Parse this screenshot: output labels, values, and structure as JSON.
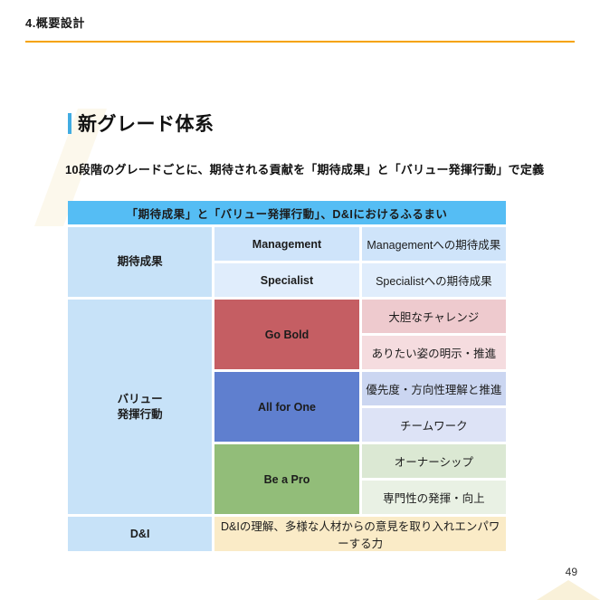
{
  "slide": {
    "section_label": "4.概要設計",
    "title": "新グレード体系",
    "subtitle": "10段階のグレードごとに、期待される貢献を「期待成果」と「バリュー発揮行動」で定義",
    "page_number": "49"
  },
  "table": {
    "header": "「期待成果」と「バリュー発揮行動」、D&Iにおけるふるまい",
    "group_labels": {
      "expected_results": "期待成果",
      "value_behaviors": "バリュー\n発揮行動",
      "dandi": "D&I"
    },
    "rows": {
      "management": {
        "category": "Management",
        "desc": "Managementへの期待成果"
      },
      "specialist": {
        "category": "Specialist",
        "desc": "Specialistへの期待成果"
      },
      "go_bold": {
        "category": "Go Bold",
        "row1": "大胆なチャレンジ",
        "row2": "ありたい姿の明示・推進"
      },
      "all_for_one": {
        "category": "All for One",
        "row1": "優先度・方向性理解と推進",
        "row2": "チームワーク"
      },
      "be_a_pro": {
        "category": "Be a Pro",
        "row1": "オーナーシップ",
        "row2": "専門性の発揮・向上"
      },
      "dandi_desc": "D&Iの理解、多様な人材からの意見を取り入れエンパワーする力"
    }
  },
  "colors": {
    "accent_line": "#F5A301",
    "title_bar": "#41ACE2",
    "table_header_bg": "#55BDF4",
    "group_label_bg": "#C7E2F8",
    "row_blue_1": "#CFE4FA",
    "row_blue_2": "#E0EDFC",
    "go_bold_bg": "#C55E63",
    "go_bold_row1": "#EECACE",
    "go_bold_row2": "#F5DCDF",
    "all_for_one_bg": "#5F7FCF",
    "all_for_one_row1": "#CBD6F1",
    "all_for_one_row2": "#DDE3F6",
    "be_a_pro_bg": "#92BD79",
    "be_a_pro_row1": "#DBE8D3",
    "be_a_pro_row2": "#E9F1E4",
    "dandi_desc_bg": "#FAEBC7"
  }
}
